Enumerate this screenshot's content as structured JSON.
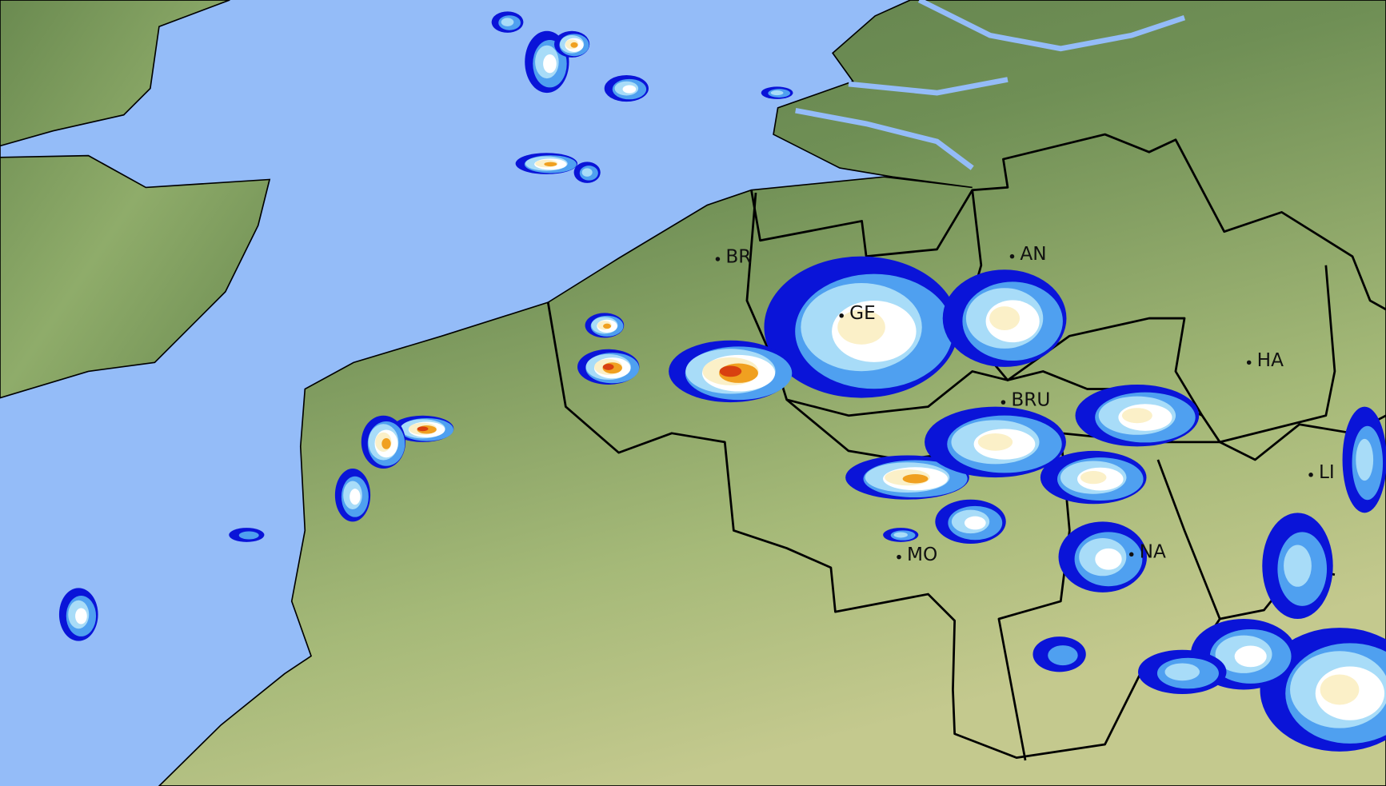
{
  "map": {
    "type": "weather-radar",
    "colors": {
      "sea": "#94bcf8",
      "land_low": "#bcc98a",
      "land_high": "#5e7d4a",
      "border": "#000000",
      "precip_light": "#0a14d8",
      "precip_moderate": "#4fa0f0",
      "precip_pale": "#a8dcf8",
      "precip_white": "#ffffff",
      "precip_cream": "#fbf0c8",
      "precip_heavy": "#f0a020",
      "precip_intense": "#d84010"
    },
    "cities": [
      {
        "id": "br",
        "label": "BR"
      },
      {
        "id": "ge",
        "label": "GE"
      },
      {
        "id": "an",
        "label": "AN"
      },
      {
        "id": "ha",
        "label": "HA"
      },
      {
        "id": "bru",
        "label": "BRU"
      },
      {
        "id": "li",
        "label": "LI"
      },
      {
        "id": "mo",
        "label": "MO"
      },
      {
        "id": "na",
        "label": "NA"
      }
    ]
  }
}
